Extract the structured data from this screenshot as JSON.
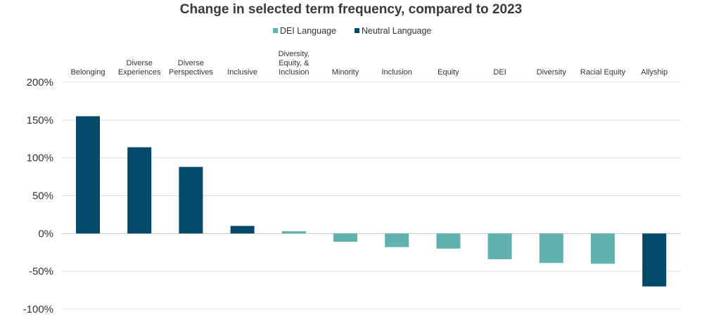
{
  "chart_data": {
    "type": "bar",
    "title": "Change in selected term frequency, compared to 2023",
    "xlabel": "",
    "ylabel": "",
    "ylim": [
      -100,
      200
    ],
    "y_ticks": [
      200,
      150,
      100,
      50,
      0,
      -50,
      -100
    ],
    "y_tick_labels": [
      "200%",
      "150%",
      "100%",
      "50%",
      "0%",
      "-50%",
      "-100%"
    ],
    "grid": true,
    "legend_position": "top-center",
    "legend": [
      {
        "name": "DEI Language",
        "color": "#5fb2b0"
      },
      {
        "name": "Neutral Language",
        "color": "#04496a"
      }
    ],
    "categories": [
      {
        "label": [
          "Belonging"
        ],
        "value": 155,
        "series": "Neutral Language"
      },
      {
        "label": [
          "Diverse",
          "Experiences"
        ],
        "value": 114,
        "series": "Neutral Language"
      },
      {
        "label": [
          "Diverse",
          "Perspectives"
        ],
        "value": 88,
        "series": "Neutral Language"
      },
      {
        "label": [
          "Inclusive"
        ],
        "value": 10,
        "series": "Neutral Language"
      },
      {
        "label": [
          "Diversity,",
          "Equity, &",
          "Inclusion"
        ],
        "value": 3,
        "series": "DEI Language"
      },
      {
        "label": [
          "Minority"
        ],
        "value": -11,
        "series": "DEI Language"
      },
      {
        "label": [
          "Inclusion"
        ],
        "value": -18,
        "series": "DEI Language"
      },
      {
        "label": [
          "Equity"
        ],
        "value": -20,
        "series": "DEI Language"
      },
      {
        "label": [
          "DEI"
        ],
        "value": -34,
        "series": "DEI Language"
      },
      {
        "label": [
          "Diversity"
        ],
        "value": -39,
        "series": "DEI Language"
      },
      {
        "label": [
          "Racial Equity"
        ],
        "value": -40,
        "series": "DEI Language"
      },
      {
        "label": [
          "Allyship"
        ],
        "value": -70,
        "series": "Neutral Language"
      }
    ]
  }
}
